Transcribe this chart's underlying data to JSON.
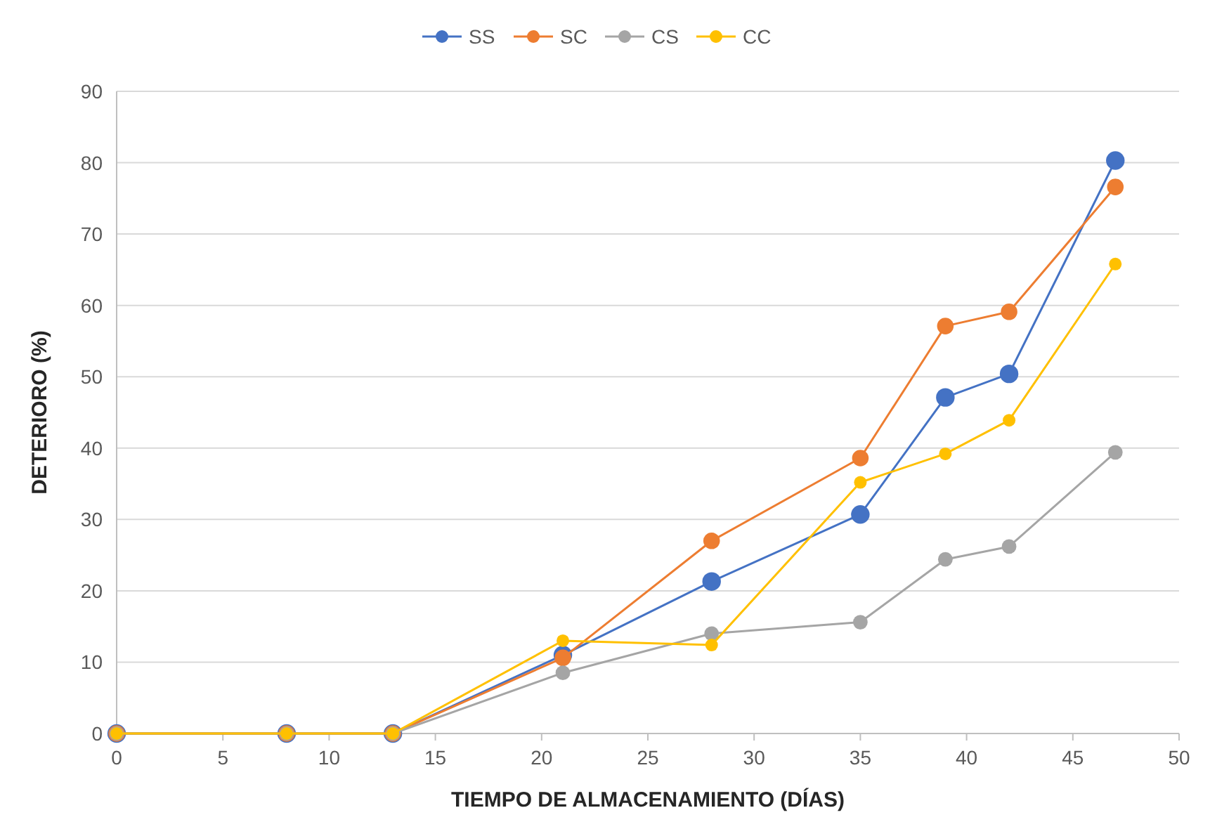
{
  "chart_data": {
    "type": "line",
    "xlabel": "TIEMPO DE ALMACENAMIENTO (DÍAS)",
    "ylabel": "DETERIORO (%)",
    "x": [
      0,
      8,
      13,
      21,
      28,
      35,
      39,
      42,
      47
    ],
    "series": [
      {
        "name": "SS",
        "color": "#4472c4",
        "values": [
          0,
          0,
          0,
          11.0,
          21.3,
          30.7,
          47.1,
          50.4,
          80.3
        ]
      },
      {
        "name": "SC",
        "color": "#ed7d31",
        "values": [
          0,
          0,
          0,
          10.6,
          27.0,
          38.6,
          57.1,
          59.1,
          76.6
        ]
      },
      {
        "name": "CS",
        "color": "#a5a5a5",
        "values": [
          0,
          0,
          0,
          8.5,
          14.0,
          15.6,
          24.4,
          26.2,
          39.4
        ]
      },
      {
        "name": "CC",
        "color": "#ffc000",
        "values": [
          0,
          0,
          0,
          13.0,
          12.4,
          35.2,
          39.2,
          43.9,
          65.8
        ]
      }
    ],
    "xlim": [
      0,
      50
    ],
    "xticks": [
      0,
      5,
      10,
      15,
      20,
      25,
      30,
      35,
      40,
      45,
      50
    ],
    "ylim": [
      0,
      90
    ],
    "yticks": [
      0,
      10,
      20,
      30,
      40,
      50,
      60,
      70,
      80,
      90
    ],
    "grid": "y",
    "legend": "top",
    "marker": "circle",
    "line_style": "solid"
  }
}
